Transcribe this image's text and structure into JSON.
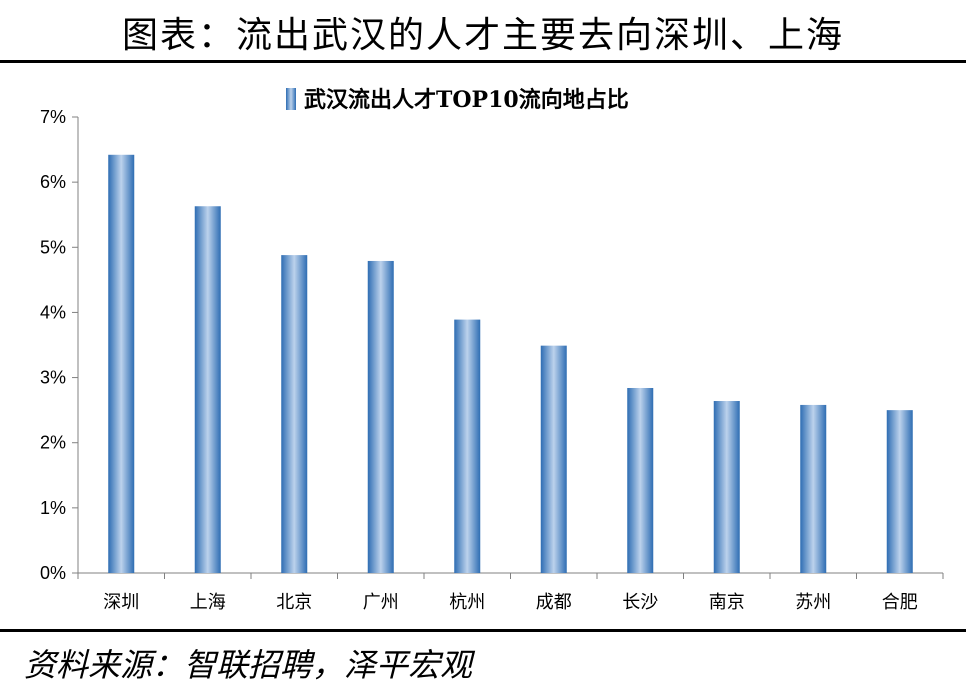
{
  "header": {
    "title": "图表：流出武汉的人才主要去向深圳、上海"
  },
  "footer": {
    "source": "资料来源：智联招聘，泽平宏观"
  },
  "colors": {
    "bar_light": "#a9c4e4",
    "bar_dark": "#2e6db3",
    "axis": "#808080"
  },
  "chart_data": {
    "type": "bar",
    "categories": [
      "深圳",
      "上海",
      "北京",
      "广州",
      "杭州",
      "成都",
      "长沙",
      "南京",
      "苏州",
      "合肥"
    ],
    "series": [
      {
        "name": "武汉流出人才TOP10流向地占比",
        "values": [
          6.42,
          5.63,
          4.88,
          4.79,
          3.89,
          3.49,
          2.84,
          2.64,
          2.58,
          2.5
        ]
      }
    ],
    "ylim": [
      0,
      7
    ],
    "yticks": [
      "0%",
      "1%",
      "2%",
      "3%",
      "4%",
      "5%",
      "6%",
      "7%"
    ],
    "unit": "%",
    "legend_position": "top-center",
    "grid": false
  }
}
